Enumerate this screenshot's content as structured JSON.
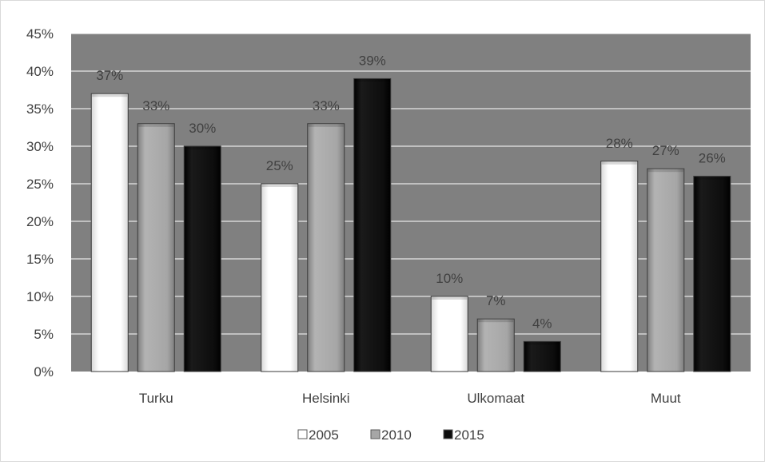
{
  "chart_data": {
    "type": "bar",
    "title": "",
    "xlabel": "",
    "ylabel": "",
    "categories": [
      "Turku",
      "Helsinki",
      "Ulkomaat",
      "Muut"
    ],
    "series": [
      {
        "name": "2005",
        "values": [
          37,
          25,
          10,
          28
        ],
        "labels": [
          "37%",
          "25%",
          "10%",
          "28%"
        ],
        "color": "#ffffff"
      },
      {
        "name": "2010",
        "values": [
          33,
          33,
          7,
          27
        ],
        "labels": [
          "33%",
          "33%",
          "7%",
          "27%"
        ],
        "color": "#a6a6a6"
      },
      {
        "name": "2015",
        "values": [
          30,
          39,
          4,
          26
        ],
        "labels": [
          "30%",
          "39%",
          "4%",
          "26%"
        ],
        "color": "#0d0d0d"
      }
    ],
    "ylim": [
      0,
      45
    ],
    "yticks": [
      "0%",
      "5%",
      "10%",
      "15%",
      "20%",
      "25%",
      "30%",
      "35%",
      "40%",
      "45%"
    ],
    "grid": true,
    "legend": "bottom",
    "plot_background": "#808080",
    "gridline_color": "#ffffff"
  }
}
